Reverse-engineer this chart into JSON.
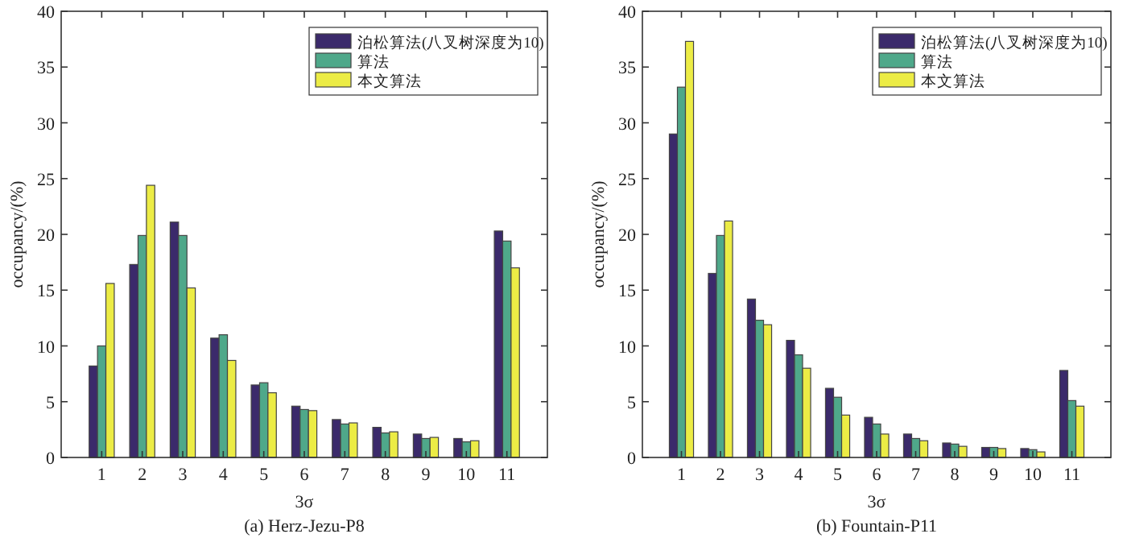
{
  "chart_data": [
    {
      "type": "bar",
      "title": "(a) Herz-Jezu-P8",
      "xlabel": "3σ",
      "ylabel": "occupancy/(%)",
      "categories": [
        "1",
        "2",
        "3",
        "4",
        "5",
        "6",
        "7",
        "8",
        "9",
        "10",
        "11"
      ],
      "ylim": [
        0,
        40
      ],
      "yticks": [
        0,
        5,
        10,
        15,
        20,
        25,
        30,
        35,
        40
      ],
      "legend": "top right",
      "series": [
        {
          "name": "泊松算法(八叉树深度为10)",
          "color": "#3b2a6b",
          "values": [
            8.2,
            17.3,
            21.1,
            10.7,
            6.5,
            4.6,
            3.4,
            2.7,
            2.1,
            1.7,
            20.3
          ]
        },
        {
          "name": "算法",
          "color": "#4fa88a",
          "values": [
            10.0,
            19.9,
            19.9,
            11.0,
            6.7,
            4.3,
            3.0,
            2.2,
            1.7,
            1.4,
            19.4
          ]
        },
        {
          "name": "本文算法",
          "color": "#ecec45",
          "values": [
            15.6,
            24.4,
            15.2,
            8.7,
            5.8,
            4.2,
            3.1,
            2.3,
            1.8,
            1.5,
            17.0
          ]
        }
      ]
    },
    {
      "type": "bar",
      "title": "(b) Fountain-P11",
      "xlabel": "3σ",
      "ylabel": "occupancy/(%)",
      "categories": [
        "1",
        "2",
        "3",
        "4",
        "5",
        "6",
        "7",
        "8",
        "9",
        "10",
        "11"
      ],
      "ylim": [
        0,
        40
      ],
      "yticks": [
        0,
        5,
        10,
        15,
        20,
        25,
        30,
        35,
        40
      ],
      "legend": "top right",
      "series": [
        {
          "name": "泊松算法(八叉树深度为10)",
          "color": "#3b2a6b",
          "values": [
            29.0,
            16.5,
            14.2,
            10.5,
            6.2,
            3.6,
            2.1,
            1.3,
            0.9,
            0.8,
            7.8
          ]
        },
        {
          "name": "算法",
          "color": "#4fa88a",
          "values": [
            33.2,
            19.9,
            12.3,
            9.2,
            5.4,
            3.0,
            1.7,
            1.2,
            0.9,
            0.7,
            5.1
          ]
        },
        {
          "name": "本文算法",
          "color": "#ecec45",
          "values": [
            37.3,
            21.2,
            11.9,
            8.0,
            3.8,
            2.1,
            1.5,
            1.0,
            0.8,
            0.5,
            4.6
          ]
        }
      ]
    }
  ]
}
